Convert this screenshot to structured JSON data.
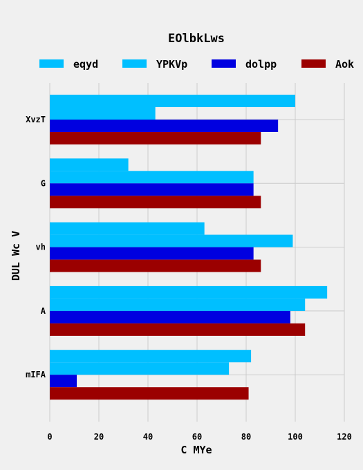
{
  "chart_data": {
    "type": "bar",
    "orientation": "horizontal",
    "title": "EOlbkLws",
    "xlabel": "C MYe",
    "ylabel": "DUL Wc V",
    "categories": [
      "XvzT",
      "G",
      "vh",
      "A",
      "mIFA"
    ],
    "series": [
      {
        "name": "eqyd",
        "color": "#00bfff",
        "values": [
          100,
          32,
          63,
          113,
          82
        ]
      },
      {
        "name": "YPKVp",
        "color": "#00bfff",
        "values": [
          43,
          83,
          99,
          104,
          73
        ]
      },
      {
        "name": "dolpp",
        "color": "#0000e0",
        "values": [
          93,
          83,
          83,
          98,
          11
        ]
      },
      {
        "name": "Aok",
        "color": "#9b0000",
        "values": [
          86,
          86,
          86,
          104,
          81
        ]
      }
    ],
    "xlim": [
      0,
      120
    ],
    "xticks": [
      "0",
      "20",
      "40",
      "60",
      "80",
      "100",
      "120"
    ],
    "grid": true,
    "legend_position": "top"
  }
}
